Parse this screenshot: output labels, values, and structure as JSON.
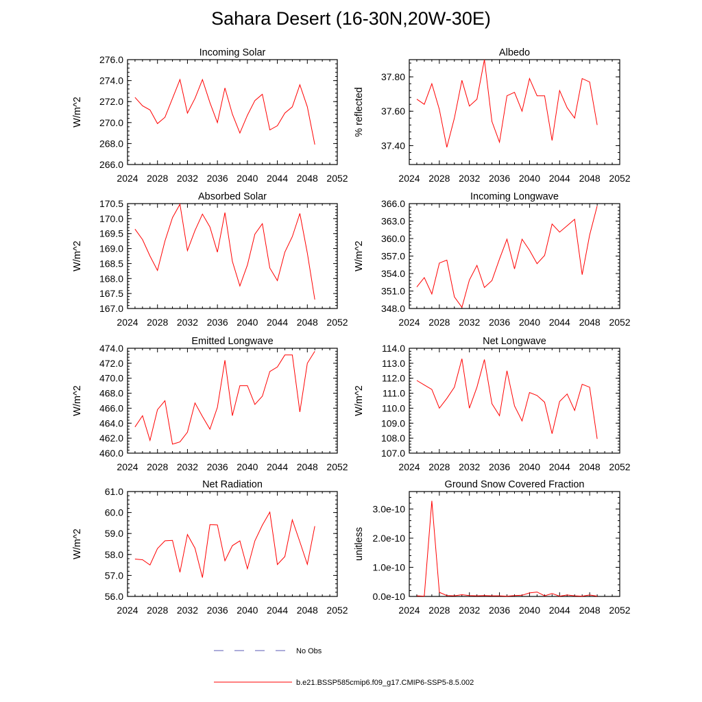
{
  "title": "Sahara Desert (16-30N,20W-30E)",
  "legend": [
    {
      "label": "No Obs",
      "color": "#5a5ab4",
      "dash": true
    },
    {
      "label": "b.e21.BSSP585cmip6.f09_g17.CMIP6-SSP5-8.5.002",
      "color": "#ff0000",
      "dash": false
    }
  ],
  "chart_data": [
    {
      "type": "line",
      "title": "Incoming Solar",
      "ylabel": "W/m^2",
      "xlim": [
        2024,
        2052
      ],
      "ylim": [
        266,
        276
      ],
      "xticks": [
        "2024",
        "2028",
        "2032",
        "2036",
        "2040",
        "2044",
        "2048",
        "2052"
      ],
      "yticks": [
        "266.0",
        "268.0",
        "270.0",
        "272.0",
        "274.0",
        "276.0"
      ],
      "x": [
        2025,
        2026,
        2027,
        2028,
        2029,
        2030,
        2031,
        2032,
        2033,
        2034,
        2035,
        2036,
        2037,
        2038,
        2039,
        2040,
        2041,
        2042,
        2043,
        2044,
        2045,
        2046,
        2047,
        2048,
        2049
      ],
      "y": [
        272.4,
        271.6,
        271.2,
        269.9,
        270.5,
        272.3,
        274.1,
        270.9,
        272.3,
        274.1,
        271.9,
        270.0,
        273.3,
        270.8,
        269.0,
        270.7,
        272.1,
        272.7,
        269.3,
        269.7,
        270.9,
        271.5,
        273.6,
        271.5,
        267.9
      ]
    },
    {
      "type": "line",
      "title": "Albedo",
      "ylabel": "% reflected",
      "xlim": [
        2024,
        2052
      ],
      "ylim": [
        37.29,
        37.9
      ],
      "xticks": [
        "2024",
        "2028",
        "2032",
        "2036",
        "2040",
        "2044",
        "2048",
        "2052"
      ],
      "yticks": [
        "37.40",
        "37.60",
        "37.80"
      ],
      "x": [
        2025,
        2026,
        2027,
        2028,
        2029,
        2030,
        2031,
        2032,
        2033,
        2034,
        2035,
        2036,
        2037,
        2038,
        2039,
        2040,
        2041,
        2042,
        2043,
        2044,
        2045,
        2046,
        2047,
        2048,
        2049
      ],
      "y": [
        37.67,
        37.64,
        37.76,
        37.61,
        37.39,
        37.56,
        37.78,
        37.63,
        37.67,
        37.9,
        37.54,
        37.42,
        37.69,
        37.71,
        37.6,
        37.79,
        37.69,
        37.69,
        37.43,
        37.72,
        37.62,
        37.56,
        37.79,
        37.77,
        37.52
      ]
    },
    {
      "type": "line",
      "title": "Absorbed Solar",
      "ylabel": "W/m^2",
      "xlim": [
        2024,
        2052
      ],
      "ylim": [
        167,
        170.5
      ],
      "xticks": [
        "2024",
        "2028",
        "2032",
        "2036",
        "2040",
        "2044",
        "2048",
        "2052"
      ],
      "yticks": [
        "167.0",
        "167.5",
        "168.0",
        "168.5",
        "169.0",
        "169.5",
        "170.0",
        "170.5"
      ],
      "x": [
        2025,
        2026,
        2027,
        2028,
        2029,
        2030,
        2031,
        2032,
        2033,
        2034,
        2035,
        2036,
        2037,
        2038,
        2039,
        2040,
        2041,
        2042,
        2043,
        2044,
        2045,
        2046,
        2047,
        2048,
        2049
      ],
      "y": [
        169.65,
        169.3,
        168.75,
        168.27,
        169.25,
        170.03,
        170.48,
        168.93,
        169.6,
        170.15,
        169.72,
        168.88,
        170.2,
        168.57,
        167.75,
        168.45,
        169.48,
        169.83,
        168.35,
        167.93,
        168.88,
        169.4,
        170.17,
        168.85,
        167.3
      ]
    },
    {
      "type": "line",
      "title": "Incoming Longwave",
      "ylabel": "W/m^2",
      "xlim": [
        2024,
        2052
      ],
      "ylim": [
        348,
        366
      ],
      "xticks": [
        "2024",
        "2028",
        "2032",
        "2036",
        "2040",
        "2044",
        "2048",
        "2052"
      ],
      "yticks": [
        "348.0",
        "351.0",
        "354.0",
        "357.0",
        "360.0",
        "363.0",
        "366.0"
      ],
      "x": [
        2025,
        2026,
        2027,
        2028,
        2029,
        2030,
        2031,
        2032,
        2033,
        2034,
        2035,
        2036,
        2037,
        2038,
        2039,
        2040,
        2041,
        2042,
        2043,
        2044,
        2045,
        2046,
        2047,
        2048,
        2049
      ],
      "y": [
        351.7,
        353.3,
        350.5,
        355.8,
        356.3,
        350.0,
        348.2,
        352.9,
        355.4,
        351.6,
        352.8,
        356.5,
        359.9,
        354.8,
        359.9,
        358.0,
        355.7,
        357.1,
        362.5,
        361.1,
        362.2,
        363.3,
        353.8,
        360.6,
        365.6
      ]
    },
    {
      "type": "line",
      "title": "Emitted Longwave",
      "ylabel": "W/m^2",
      "xlim": [
        2024,
        2052
      ],
      "ylim": [
        460,
        474
      ],
      "xticks": [
        "2024",
        "2028",
        "2032",
        "2036",
        "2040",
        "2044",
        "2048",
        "2052"
      ],
      "yticks": [
        "460.0",
        "462.0",
        "464.0",
        "466.0",
        "468.0",
        "470.0",
        "472.0",
        "474.0"
      ],
      "x": [
        2025,
        2026,
        2027,
        2028,
        2029,
        2030,
        2031,
        2032,
        2033,
        2034,
        2035,
        2036,
        2037,
        2038,
        2039,
        2040,
        2041,
        2042,
        2043,
        2044,
        2045,
        2046,
        2047,
        2048,
        2049
      ],
      "y": [
        463.5,
        465.0,
        461.7,
        465.8,
        467.0,
        461.2,
        461.5,
        462.8,
        466.7,
        464.9,
        463.2,
        466.1,
        472.4,
        465.0,
        469.0,
        469.0,
        466.5,
        467.6,
        470.9,
        471.5,
        473.1,
        473.1,
        465.5,
        472.0,
        473.6
      ]
    },
    {
      "type": "line",
      "title": "Net Longwave",
      "ylabel": "W/m^2",
      "xlim": [
        2024,
        2052
      ],
      "ylim": [
        107,
        114
      ],
      "xticks": [
        "2024",
        "2028",
        "2032",
        "2036",
        "2040",
        "2044",
        "2048",
        "2052"
      ],
      "yticks": [
        "107.0",
        "108.0",
        "109.0",
        "110.0",
        "111.0",
        "112.0",
        "113.0",
        "114.0"
      ],
      "x": [
        2025,
        2026,
        2027,
        2028,
        2029,
        2030,
        2031,
        2032,
        2033,
        2034,
        2035,
        2036,
        2037,
        2038,
        2039,
        2040,
        2041,
        2042,
        2043,
        2044,
        2045,
        2046,
        2047,
        2048,
        2049
      ],
      "y": [
        111.85,
        111.55,
        111.25,
        110.0,
        110.65,
        111.4,
        113.3,
        110.0,
        111.4,
        113.25,
        110.3,
        109.5,
        112.5,
        110.15,
        109.15,
        111.05,
        110.85,
        110.4,
        108.3,
        110.45,
        110.95,
        109.85,
        111.6,
        111.4,
        107.95
      ]
    },
    {
      "type": "line",
      "title": "Net Radiation",
      "ylabel": "W/m^2",
      "xlim": [
        2024,
        2052
      ],
      "ylim": [
        56,
        61
      ],
      "xticks": [
        "2024",
        "2028",
        "2032",
        "2036",
        "2040",
        "2044",
        "2048",
        "2052"
      ],
      "yticks": [
        "56.0",
        "57.0",
        "58.0",
        "59.0",
        "60.0",
        "61.0"
      ],
      "x": [
        2025,
        2026,
        2027,
        2028,
        2029,
        2030,
        2031,
        2032,
        2033,
        2034,
        2035,
        2036,
        2037,
        2038,
        2039,
        2040,
        2041,
        2042,
        2043,
        2044,
        2045,
        2046,
        2047,
        2048,
        2049
      ],
      "y": [
        57.78,
        57.75,
        57.5,
        58.28,
        58.65,
        58.67,
        57.15,
        58.95,
        58.3,
        56.9,
        59.42,
        59.41,
        57.7,
        58.42,
        58.65,
        57.32,
        58.65,
        59.4,
        60.02,
        57.52,
        57.9,
        59.65,
        58.6,
        57.53,
        59.35
      ]
    },
    {
      "type": "line",
      "title": "Ground Snow Covered Fraction",
      "ylabel": "unitless",
      "xlim": [
        2024,
        2052
      ],
      "ylim": [
        0,
        3.6e-10
      ],
      "xticks": [
        "2024",
        "2028",
        "2032",
        "2036",
        "2040",
        "2044",
        "2048",
        "2052"
      ],
      "yticks": [
        "0.0e-10",
        "1.0e-10",
        "2.0e-10",
        "3.0e-10"
      ],
      "x": [
        2025,
        2026,
        2027,
        2028,
        2029,
        2030,
        2031,
        2032,
        2033,
        2034,
        2035,
        2036,
        2037,
        2038,
        2039,
        2040,
        2041,
        2042,
        2043,
        2044,
        2045,
        2046,
        2047,
        2048,
        2049
      ],
      "y": [
        2e-12,
        1e-12,
        3.28e-10,
        1.4e-11,
        3e-12,
        2e-12,
        6e-12,
        3e-12,
        2e-12,
        3e-12,
        2e-12,
        2e-12,
        1e-12,
        3e-12,
        4e-12,
        1.2e-11,
        1.5e-11,
        2e-12,
        1e-11,
        1e-12,
        5e-12,
        2e-12,
        1e-12,
        5e-12,
        1e-12
      ]
    }
  ]
}
